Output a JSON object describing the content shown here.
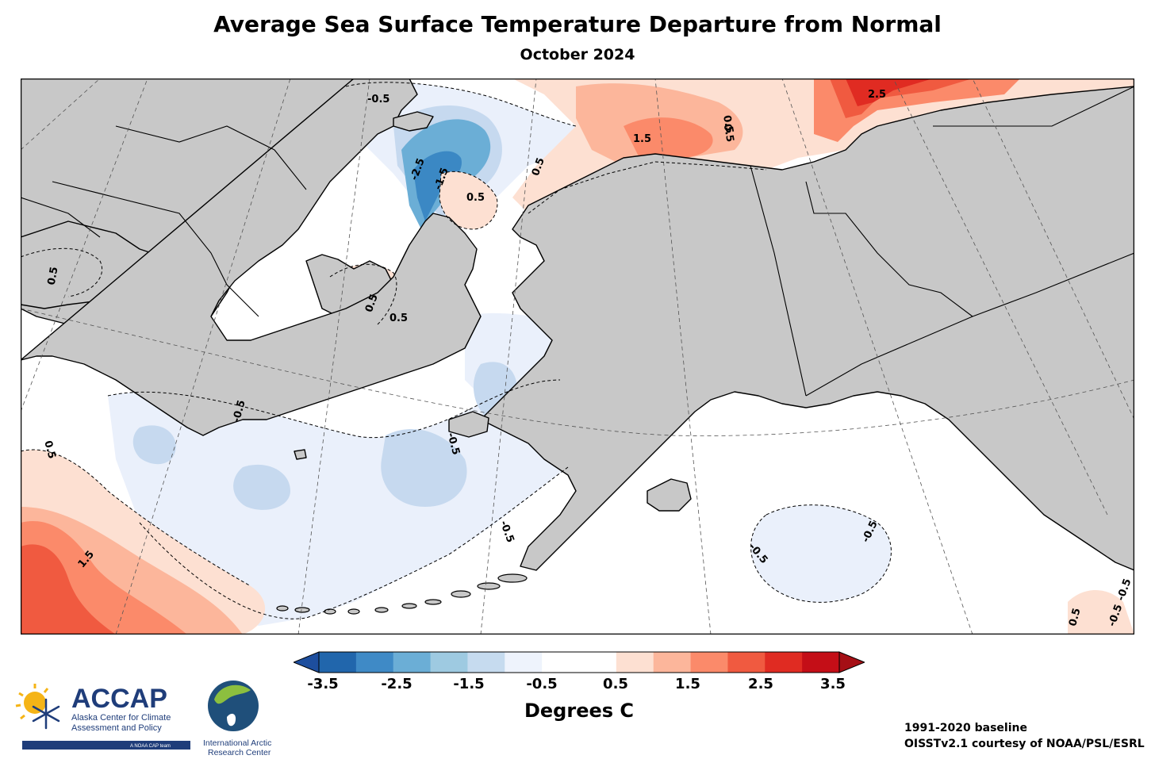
{
  "header": {
    "title": "Average Sea Surface Temperature Departure from Normal",
    "subtitle": "October 2024"
  },
  "map": {
    "colors": {
      "land": "#c8c8c8",
      "ocean_neutral": "#ffffff",
      "cool_0_5": "#eaf0fb",
      "cool_1_0": "#c6d9ef",
      "cool_1_5": "#9ecae1",
      "cool_2_0": "#6baed6",
      "cool_2_5": "#3b88c4",
      "warm_0_5": "#fde0d2",
      "warm_1_0": "#fcb69b",
      "warm_1_5": "#fb8a6a",
      "warm_2_0": "#f05a40",
      "warm_2_5": "#e02b22",
      "warm_3_0": "#c40e17"
    },
    "contour_labels": [
      "-0.5",
      "-2.5",
      "-1.5",
      "0.5",
      "0.5",
      "0.5",
      "1.5",
      "0.5",
      "2.5",
      "0.5",
      "0.5",
      "0.5",
      "-0.5",
      "-0.5",
      "0.5",
      "-0.5",
      "1.5",
      "-0.5",
      "-0.5",
      "-0.5",
      "0.5",
      "-0.5"
    ]
  },
  "colorbar": {
    "tick_labels": [
      "-3.5",
      "-2.5",
      "-1.5",
      "-0.5",
      "0.5",
      "1.5",
      "2.5",
      "3.5"
    ],
    "label": "Degrees C",
    "colors": [
      "#2166ac",
      "#3f8ac6",
      "#6baed6",
      "#9ecae1",
      "#c6dbef",
      "#eef3fc",
      "#ffffff",
      "#ffffff",
      "#fde0d2",
      "#fcb69b",
      "#fb8a6a",
      "#f05a40",
      "#e02b22",
      "#c40e17"
    ],
    "under_color": "#1d4e9e",
    "over_color": "#a50f15"
  },
  "logos": {
    "accap_name": "ACCAP",
    "accap_line1": "Alaska Center for Climate",
    "accap_line2": "Assessment and Policy",
    "accap_tag": "A NOAA CAP team",
    "iarc_line1": "International Arctic",
    "iarc_line2": "Research Center"
  },
  "footnotes": {
    "baseline": "1991-2020 baseline",
    "source": "OISSTv2.1 courtesy of NOAA/PSL/ESRL"
  }
}
